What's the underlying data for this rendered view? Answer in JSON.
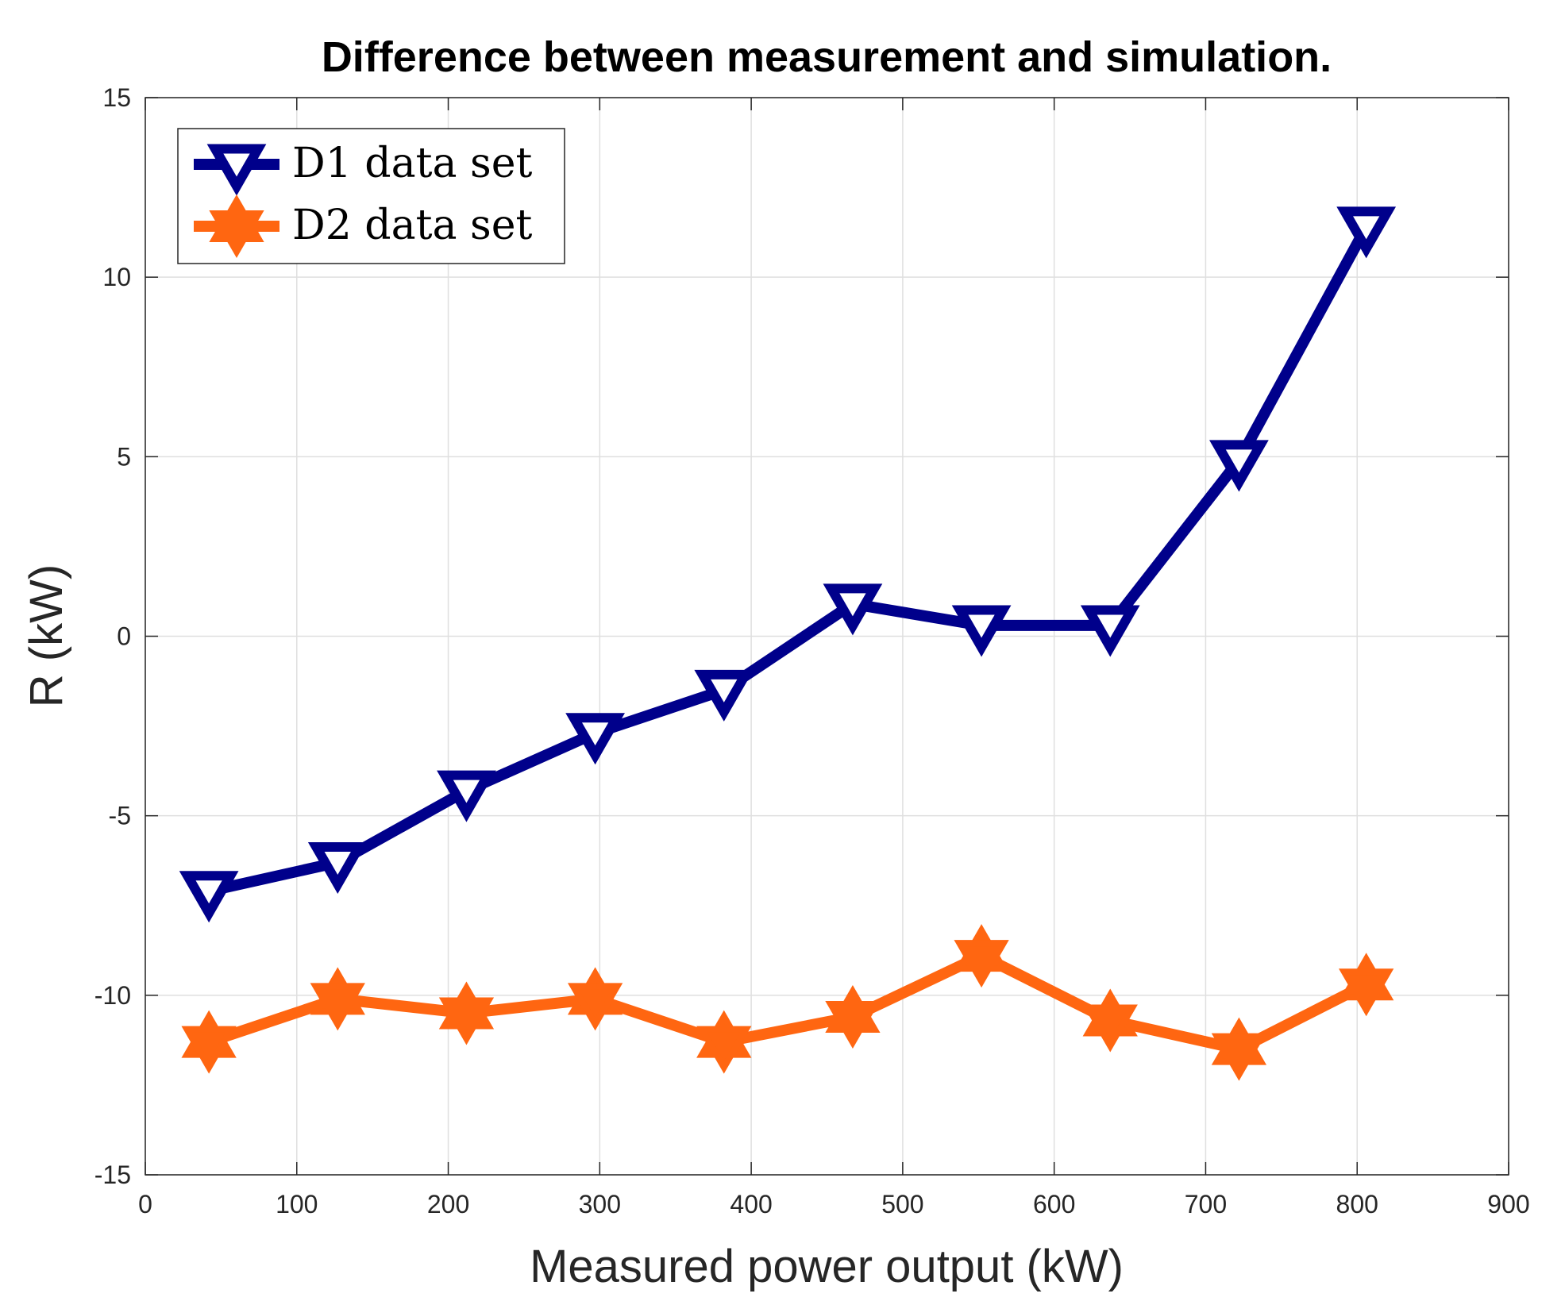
{
  "chart_data": {
    "type": "line",
    "title": "Difference between measurement and simulation.",
    "xlabel": "Measured power output (kW)",
    "ylabel": "R (kW)",
    "xlim": [
      0,
      900
    ],
    "ylim": [
      -15,
      15
    ],
    "xticks": [
      0,
      100,
      200,
      300,
      400,
      500,
      600,
      700,
      800,
      900
    ],
    "yticks": [
      -15,
      -10,
      -5,
      0,
      5,
      10,
      15
    ],
    "xtick_labels": [
      "0",
      "100",
      "200",
      "300",
      "400",
      "500",
      "600",
      "700",
      "800",
      "900"
    ],
    "ytick_labels": [
      "-15",
      "-10",
      "-5",
      "0",
      "5",
      "10",
      "15"
    ],
    "grid": true,
    "legend_position": "top-left",
    "series": [
      {
        "name": "D1 data set",
        "color": "#00008b",
        "marker": "triangle-down",
        "x": [
          42,
          127,
          212,
          297,
          382,
          467,
          552,
          637,
          722,
          806
        ],
        "y": [
          -7.1,
          -6.3,
          -4.3,
          -2.7,
          -1.5,
          0.9,
          0.3,
          0.3,
          4.9,
          11.4
        ]
      },
      {
        "name": "D2 data set",
        "color": "#ff6611",
        "marker": "hexagram",
        "x": [
          42,
          127,
          212,
          297,
          382,
          467,
          552,
          637,
          722,
          806
        ],
        "y": [
          -11.3,
          -10.1,
          -10.5,
          -10.1,
          -11.3,
          -10.6,
          -8.9,
          -10.7,
          -11.5,
          -9.7
        ]
      }
    ]
  }
}
